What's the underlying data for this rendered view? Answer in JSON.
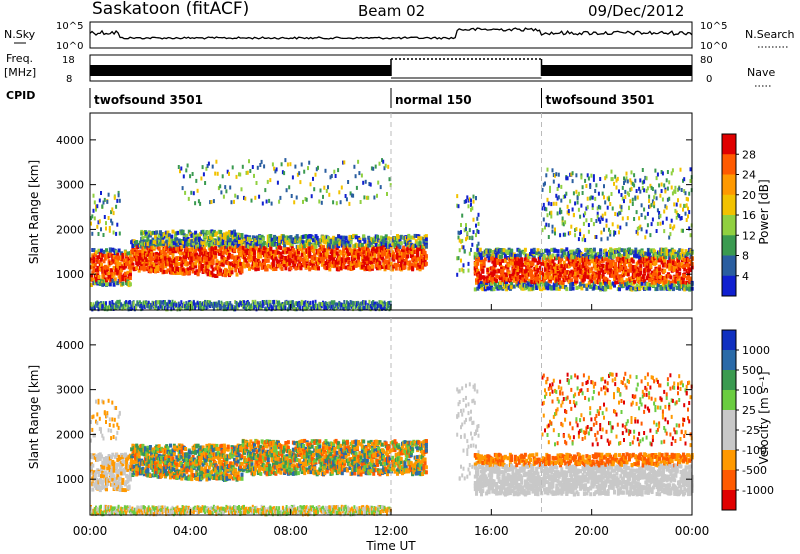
{
  "header": {
    "station": "Saskatoon (fitACF)",
    "beam": "Beam 02",
    "date": "09/Dec/2012"
  },
  "strip_labels": {
    "nsky": "N.Sky",
    "nsky_ticks": [
      "10^5",
      "10^0"
    ],
    "nsearch": "N.Search",
    "nsearch_ticks": [
      "10^5",
      "10^0"
    ],
    "freq": "Freq.",
    "freq_unit": "[MHz]",
    "freq_ticks": [
      "18",
      "8"
    ],
    "nave": "Nave",
    "nave_ticks": [
      "80",
      "0"
    ],
    "cpid": "CPID"
  },
  "cpid_segments": [
    {
      "label": "twofsound 3501",
      "start_hour": 0,
      "end_hour": 12
    },
    {
      "label": "normal 150",
      "start_hour": 12,
      "end_hour": 18
    },
    {
      "label": "twofsound 3501",
      "start_hour": 18,
      "end_hour": 24
    }
  ],
  "chart_data": [
    {
      "type": "heatmap",
      "panel": "power",
      "ylabel": "Slant Range [km]",
      "yticks": [
        1000,
        2000,
        3000,
        4000
      ],
      "ylim": [
        200,
        4600
      ],
      "xlim": [
        0,
        24
      ],
      "colorbar": {
        "label": "Power [dB]",
        "ticks": [
          "28",
          "24",
          "20",
          "16",
          "12",
          "8",
          "4"
        ],
        "colors": [
          "#e00000",
          "#ff5a00",
          "#ff9900",
          "#f2c200",
          "#90d040",
          "#3a9a50",
          "#2a5ea0",
          "#1020d0"
        ]
      },
      "echo_regions": [
        {
          "name": "main-band-early",
          "x": [
            0,
            1.5
          ],
          "y": [
            800,
            1700
          ],
          "level": 0
        },
        {
          "name": "main-band",
          "x": [
            1.5,
            13.5
          ],
          "y": [
            1000,
            2000
          ],
          "level": 1
        },
        {
          "name": "main-band-late",
          "x": [
            15,
            24
          ],
          "y": [
            800,
            1700
          ],
          "level": 0
        },
        {
          "name": "near-range",
          "x": [
            0,
            12
          ],
          "y": [
            250,
            450
          ],
          "level": 6
        }
      ]
    },
    {
      "type": "heatmap",
      "panel": "velocity",
      "ylabel": "Slant Range [km]",
      "xlabel": "Time UT",
      "yticks": [
        1000,
        2000,
        3000,
        4000
      ],
      "xticks": [
        "00:00",
        "04:00",
        "08:00",
        "12:00",
        "16:00",
        "20:00",
        "00:00"
      ],
      "ylim": [
        200,
        4600
      ],
      "xlim": [
        0,
        24
      ],
      "colorbar": {
        "label": "Velocity [m s⁻¹]",
        "ticks": [
          "1000",
          "500",
          "100",
          "25",
          "-25",
          "-100",
          "-500",
          "-1000"
        ],
        "colors": [
          "#1030c0",
          "#2a6aa8",
          "#3a9a50",
          "#6acc40",
          "#c8c8c8",
          "#c8c8c8",
          "#ff9900",
          "#ff5a00",
          "#e00000"
        ]
      }
    }
  ]
}
